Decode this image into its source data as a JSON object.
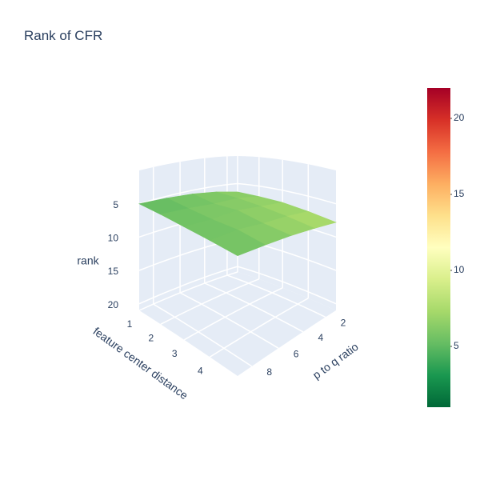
{
  "chart_data": {
    "type": "surface",
    "title": "Rank of CFR",
    "x": [
      1,
      2,
      3,
      4,
      5
    ],
    "y": [
      1,
      3,
      5,
      7,
      9
    ],
    "z": [
      [
        6.5,
        6.8,
        7.0,
        7.4,
        7.8
      ],
      [
        6.0,
        6.3,
        6.6,
        6.9,
        7.2
      ],
      [
        5.6,
        6.2,
        6.0,
        6.5,
        6.6
      ],
      [
        5.3,
        5.7,
        5.9,
        5.8,
        6.1
      ],
      [
        5.0,
        5.2,
        5.4,
        5.5,
        5.6
      ]
    ],
    "xlabel": "feature center distance",
    "ylabel": "p to q ratio",
    "zlabel": "rank",
    "xlim": [
      1,
      5
    ],
    "ylim": [
      1,
      9
    ],
    "zlim": [
      0,
      21
    ],
    "z_reversed": true,
    "xticks": [
      1,
      2,
      3,
      4
    ],
    "yticks": [
      2,
      4,
      6,
      8
    ],
    "zticks": [
      5,
      10,
      15,
      20
    ],
    "colorscale": [
      [
        0,
        "#006837"
      ],
      [
        0.1,
        "#1a9850"
      ],
      [
        0.2,
        "#66bd63"
      ],
      [
        0.3,
        "#a6d96a"
      ],
      [
        0.4,
        "#d9ef8b"
      ],
      [
        0.5,
        "#ffffbf"
      ],
      [
        0.6,
        "#fee08b"
      ],
      [
        0.7,
        "#fdae61"
      ],
      [
        0.8,
        "#f46d43"
      ],
      [
        0.9,
        "#d73027"
      ],
      [
        1,
        "#a50026"
      ]
    ],
    "colorbar_lim": [
      1,
      22
    ],
    "colorbar_ticks": [
      5,
      10,
      15,
      20
    ]
  }
}
